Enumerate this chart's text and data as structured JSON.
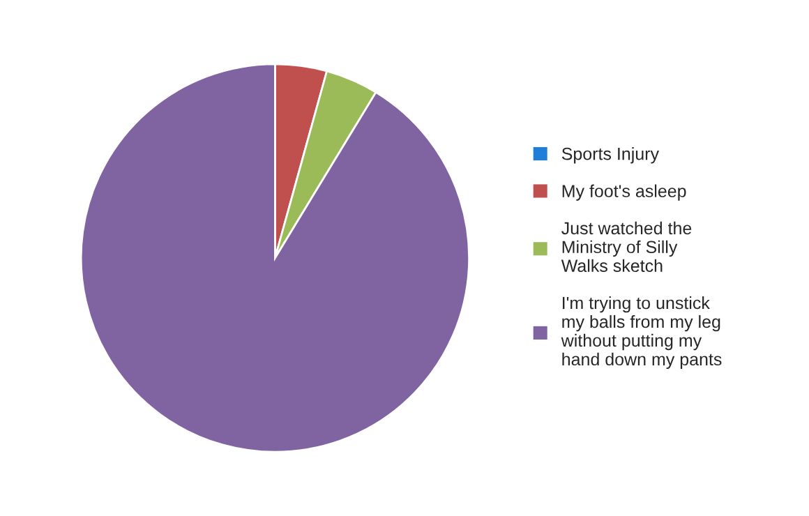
{
  "chart_data": {
    "type": "pie",
    "categories": [
      "Sports Injury",
      "My foot's asleep",
      "Just watched the Ministry of Silly Walks sketch",
      "I'm trying to unstick my balls from my leg without putting my hand down my pants"
    ],
    "values": [
      null,
      4.3,
      4.4,
      91.3
    ],
    "colors": [
      "#1f7fd8",
      "#c0504d",
      "#9bbb59",
      "#8064a2"
    ],
    "legend": "right"
  }
}
